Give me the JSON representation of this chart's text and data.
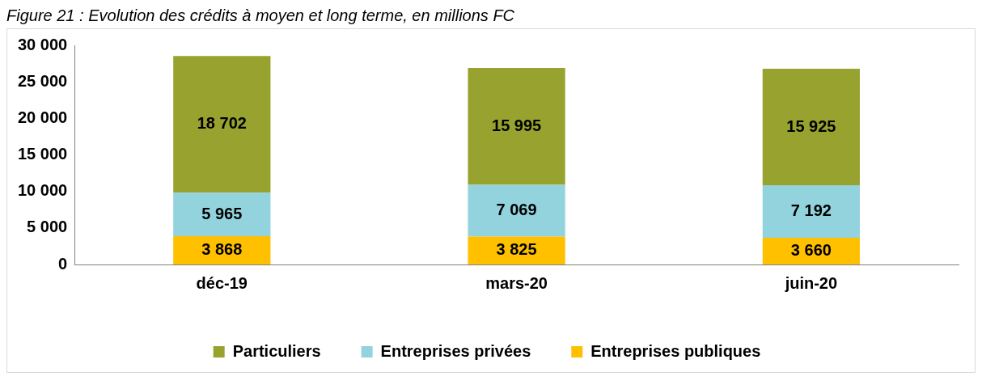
{
  "chart_data": {
    "type": "bar",
    "title": "Figure 21 : Evolution des crédits à moyen et long terme, en millions FC",
    "categories": [
      "déc-19",
      "mars-20",
      "juin-20"
    ],
    "stacked": true,
    "data_labels": true,
    "legend": "bottom",
    "grid": false,
    "ylim": [
      0,
      30000
    ],
    "yticks": [
      0,
      5000,
      10000,
      15000,
      20000,
      25000,
      30000
    ],
    "series": [
      {
        "name": "Entreprises publiques",
        "color": "#ffc000",
        "values": [
          3868,
          3825,
          3660
        ]
      },
      {
        "name": "Entreprises privées",
        "color": "#92d3de",
        "values": [
          5965,
          7069,
          7192
        ]
      },
      {
        "name": "Particuliers",
        "color": "#97a22f",
        "values": [
          18702,
          15995,
          15925
        ]
      }
    ]
  }
}
